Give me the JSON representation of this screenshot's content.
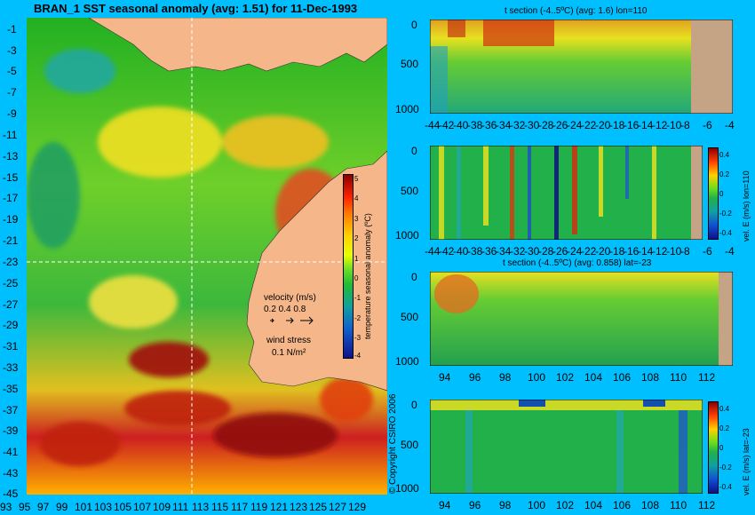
{
  "map": {
    "title": "BRAN_1  SST seasonal anomaly (avg: 1.51) for 11-Dec-1993",
    "y_ticks": [
      "-1",
      "-3",
      "-5",
      "-7",
      "-9",
      "-11",
      "-13",
      "-15",
      "-17",
      "-19",
      "-21",
      "-23",
      "-25",
      "-27",
      "-29",
      "-31",
      "-33",
      "-35",
      "-37",
      "-39",
      "-41",
      "-43",
      "-45"
    ],
    "x_ticks": [
      "93",
      "95",
      "97",
      "99",
      "101",
      "103",
      "105",
      "107",
      "109",
      "111",
      "113",
      "115",
      "117",
      "119",
      "121",
      "123",
      "125",
      "127",
      "129"
    ],
    "colorbar": {
      "label": "temperature seasonal anomaly (ºC)",
      "ticks": [
        "5",
        "4",
        "3",
        "2",
        "1",
        "0",
        "-1",
        "-2",
        "-3",
        "-4"
      ]
    },
    "velocity_label": "velocity (m/s)",
    "velocity_scale": "0.2 0.4 0.8",
    "wind_label": "wind stress",
    "wind_scale": "0.1 N/m²",
    "copyright": "© Copyright CSIRO 2006"
  },
  "panels": [
    {
      "title": "t section (-4..5ºC) (avg: 1.6) lon=110",
      "y_ticks": [
        "0",
        "500",
        "1000"
      ],
      "x_ticks": [
        "-44",
        "-42",
        "-40",
        "-38",
        "-36",
        "-34",
        "-32",
        "-30",
        "-28",
        "-26",
        "-24",
        "-22",
        "-20",
        "-18",
        "-16",
        "-14",
        "-12",
        "-10",
        "-8",
        "-6",
        "-4"
      ],
      "colorbar_label": "",
      "cb_ticks": []
    },
    {
      "title": "",
      "y_ticks": [
        "0",
        "500",
        "1000"
      ],
      "x_ticks": [
        "-44",
        "-42",
        "-40",
        "-38",
        "-36",
        "-34",
        "-32",
        "-30",
        "-28",
        "-26",
        "-24",
        "-22",
        "-20",
        "-18",
        "-16",
        "-14",
        "-12",
        "-10",
        "-8",
        "-6",
        "-4"
      ],
      "colorbar_label": "vel. E (m/s) lon=110",
      "cb_ticks": [
        "0.4",
        "0.2",
        "0",
        "-0.2",
        "-0.4"
      ]
    },
    {
      "title": "t section (-4..5ºC) (avg: 0.858) lat=-23",
      "y_ticks": [
        "0",
        "500",
        "1000"
      ],
      "x_ticks": [
        "94",
        "96",
        "98",
        "100",
        "102",
        "104",
        "106",
        "108",
        "110",
        "112"
      ],
      "colorbar_label": "",
      "cb_ticks": []
    },
    {
      "title": "",
      "y_ticks": [
        "0",
        "500",
        "1000"
      ],
      "x_ticks": [
        "94",
        "96",
        "98",
        "100",
        "102",
        "104",
        "106",
        "108",
        "110",
        "112"
      ],
      "colorbar_label": "vel. E (m/s) lat=-23",
      "cb_ticks": [
        "0.4",
        "0.2",
        "0",
        "-0.2",
        "-0.4"
      ]
    }
  ],
  "chart_data": [
    {
      "type": "heatmap",
      "title": "BRAN_1  SST seasonal anomaly (avg: 1.51) for 11-Dec-1993",
      "xlim": [
        93,
        130
      ],
      "ylim": [
        -45,
        0
      ],
      "colorbar_range": [
        -4,
        5
      ],
      "colorbar_label": "temperature seasonal anomaly (ºC)"
    },
    {
      "type": "heatmap",
      "title": "t section (-4..5ºC) (avg: 1.6) lon=110",
      "xlim": [
        -45,
        -3
      ],
      "ylim": [
        1050,
        0
      ]
    },
    {
      "type": "heatmap",
      "colorbar_label": "vel. E (m/s) lon=110",
      "colorbar_range": [
        -0.5,
        0.5
      ],
      "xlim": [
        -45,
        -3
      ],
      "ylim": [
        1050,
        0
      ]
    },
    {
      "type": "heatmap",
      "title": "t section (-4..5ºC) (avg: 0.858) lat=-23",
      "xlim": [
        93,
        114
      ],
      "ylim": [
        1050,
        0
      ]
    },
    {
      "type": "heatmap",
      "colorbar_label": "vel. E (m/s) lat=-23",
      "colorbar_range": [
        -0.5,
        0.5
      ],
      "xlim": [
        93,
        114
      ],
      "ylim": [
        1050,
        0
      ]
    }
  ]
}
